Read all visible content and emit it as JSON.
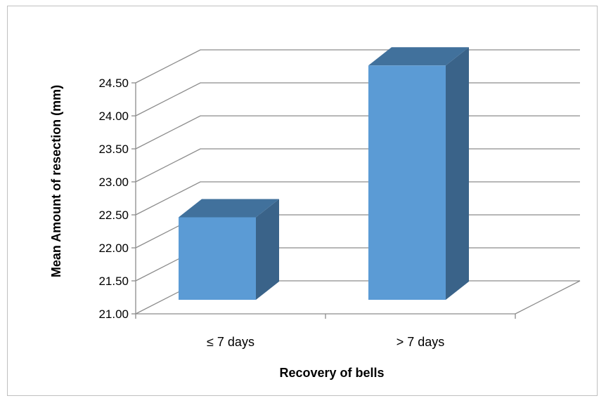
{
  "chart_data": {
    "type": "bar",
    "style": "3d-column",
    "categories": [
      "≤ 7 days",
      "> 7 days"
    ],
    "values": [
      22.25,
      24.55
    ],
    "xlabel": "Recovery of bells",
    "ylabel": "Mean Amount of resection (mm)",
    "ylim": [
      21.0,
      24.5
    ],
    "yticks": [
      "21.00",
      "21.50",
      "22.00",
      "22.50",
      "23.00",
      "23.50",
      "24.00",
      "24.50"
    ],
    "grid": true,
    "legend": "none",
    "colors": {
      "bar_front": "#5b9bd5",
      "bar_top": "#41719c",
      "bar_side": "#3a6389",
      "grid": "#8c8c8c",
      "frame_border": "#bfbfbf"
    }
  }
}
